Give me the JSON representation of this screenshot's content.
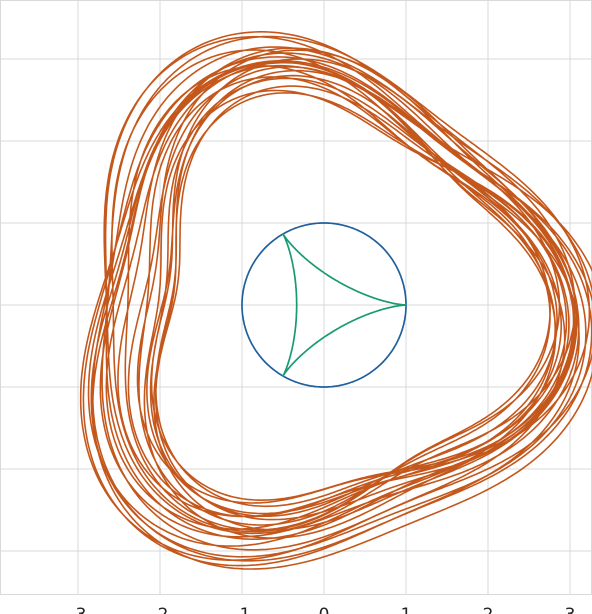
{
  "chart_data": {
    "type": "line",
    "title": "",
    "xlabel": "",
    "ylabel": "",
    "grid": true,
    "legend": "none",
    "xlim": [
      -4,
      4.5
    ],
    "ylim": [
      -4,
      4.5
    ],
    "x_ticks": [
      -3,
      -2,
      -1,
      0,
      1,
      2,
      3
    ],
    "x_tick_labels": [
      "-3",
      "-2",
      "-1",
      "0",
      "1",
      "2",
      "3"
    ],
    "series": [
      {
        "kind": "circle",
        "color": "#1f5f9e",
        "center": [
          0,
          0
        ],
        "radius": 1.0
      },
      {
        "kind": "deltoid",
        "color": "#1a9a72",
        "R": 1.0,
        "r": 0.3333,
        "turns": 1
      },
      {
        "kind": "precessing-trefoil",
        "color": "#c4571b",
        "base_radius": 2.7,
        "lobe_amplitude": 0.35,
        "wobble_amplitude": 0.3,
        "loops": 24
      }
    ]
  }
}
